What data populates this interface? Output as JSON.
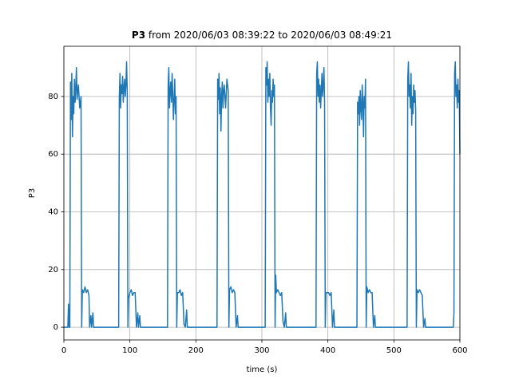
{
  "chart_data": {
    "type": "line",
    "title_bold": "P3",
    "title": "from 2020/06/03 08:39:22 to 2020/06/03 08:49:21",
    "xlabel": "time (s)",
    "ylabel": "P3",
    "color": "#1f77b4",
    "grid": true,
    "xlim": [
      0,
      600
    ],
    "ylim": [
      -4.4,
      97.4
    ],
    "xticks": [
      0,
      100,
      200,
      300,
      400,
      500,
      600
    ],
    "yticks": [
      0,
      20,
      40,
      60,
      80
    ],
    "x": [
      0,
      6,
      7,
      8,
      9,
      10,
      11,
      12,
      13,
      14,
      15,
      16,
      17,
      18,
      19,
      20,
      22,
      24,
      26,
      27,
      28,
      30,
      32,
      34,
      36,
      38,
      39,
      41,
      42,
      44,
      45,
      83,
      84,
      85,
      86,
      87,
      88,
      89,
      90,
      91,
      92,
      93,
      94,
      95,
      96,
      97,
      98,
      100,
      102,
      104,
      106,
      108,
      110,
      112,
      113,
      115,
      116,
      157,
      158,
      159,
      160,
      161,
      162,
      163,
      164,
      165,
      166,
      167,
      168,
      169,
      170,
      171,
      172,
      174,
      176,
      178,
      180,
      182,
      184,
      186,
      187,
      232,
      233,
      234,
      235,
      236,
      237,
      238,
      239,
      240,
      241,
      242,
      243,
      245,
      247,
      249,
      250,
      251,
      253,
      255,
      257,
      259,
      261,
      263,
      264,
      305,
      306,
      307,
      308,
      309,
      310,
      311,
      312,
      313,
      314,
      315,
      316,
      317,
      318,
      319,
      320,
      321,
      322,
      324,
      326,
      328,
      330,
      332,
      334,
      336,
      337,
      382,
      383,
      384,
      385,
      386,
      387,
      388,
      389,
      390,
      391,
      392,
      393,
      394,
      395,
      396,
      397,
      399,
      401,
      403,
      405,
      407,
      409,
      410,
      444,
      445,
      446,
      447,
      448,
      449,
      450,
      451,
      452,
      453,
      454,
      455,
      456,
      457,
      458,
      459,
      461,
      463,
      465,
      467,
      469,
      471,
      472,
      520,
      521,
      522,
      523,
      524,
      525,
      526,
      527,
      528,
      529,
      530,
      531,
      532,
      533,
      534,
      535,
      537,
      539,
      541,
      543,
      545,
      547,
      548,
      590,
      591,
      592,
      593,
      594,
      595,
      596,
      597,
      598,
      599,
      600
    ],
    "values": [
      0,
      0,
      8,
      0,
      0,
      85,
      72,
      88,
      66,
      80,
      74,
      86,
      78,
      83,
      90,
      79,
      84,
      76,
      80,
      0,
      13,
      12,
      14,
      12,
      13,
      11,
      0,
      4,
      0,
      5,
      0,
      0,
      80,
      88,
      76,
      84,
      81,
      87,
      78,
      83,
      86,
      80,
      84,
      92,
      82,
      0,
      10,
      12,
      13,
      11,
      12,
      12,
      0,
      5,
      0,
      4,
      0,
      0,
      84,
      90,
      76,
      82,
      85,
      78,
      88,
      81,
      72,
      79,
      86,
      74,
      80,
      0,
      12,
      12,
      13,
      11,
      12,
      1,
      0,
      6,
      0,
      0,
      86,
      79,
      88,
      74,
      83,
      68,
      80,
      85,
      76,
      82,
      84,
      76,
      86,
      82,
      0,
      13,
      14,
      12,
      13,
      12,
      0,
      4,
      0,
      0,
      90,
      84,
      92,
      78,
      86,
      80,
      88,
      76,
      70,
      82,
      78,
      86,
      80,
      84,
      0,
      18,
      12,
      13,
      12,
      11,
      12,
      2,
      0,
      5,
      0,
      0,
      88,
      92,
      80,
      86,
      78,
      84,
      76,
      82,
      88,
      80,
      84,
      90,
      78,
      0,
      12,
      12,
      12,
      11,
      12,
      0,
      6,
      0,
      0,
      78,
      74,
      80,
      70,
      82,
      76,
      72,
      84,
      78,
      66,
      80,
      76,
      86,
      0,
      14,
      12,
      13,
      12,
      12,
      0,
      4,
      0,
      0,
      86,
      92,
      80,
      84,
      76,
      88,
      70,
      80,
      74,
      84,
      78,
      82,
      75,
      0,
      13,
      12,
      13,
      12,
      11,
      0,
      3,
      0,
      0,
      5,
      88,
      92,
      80,
      84,
      76,
      86,
      78,
      82,
      60
    ]
  }
}
